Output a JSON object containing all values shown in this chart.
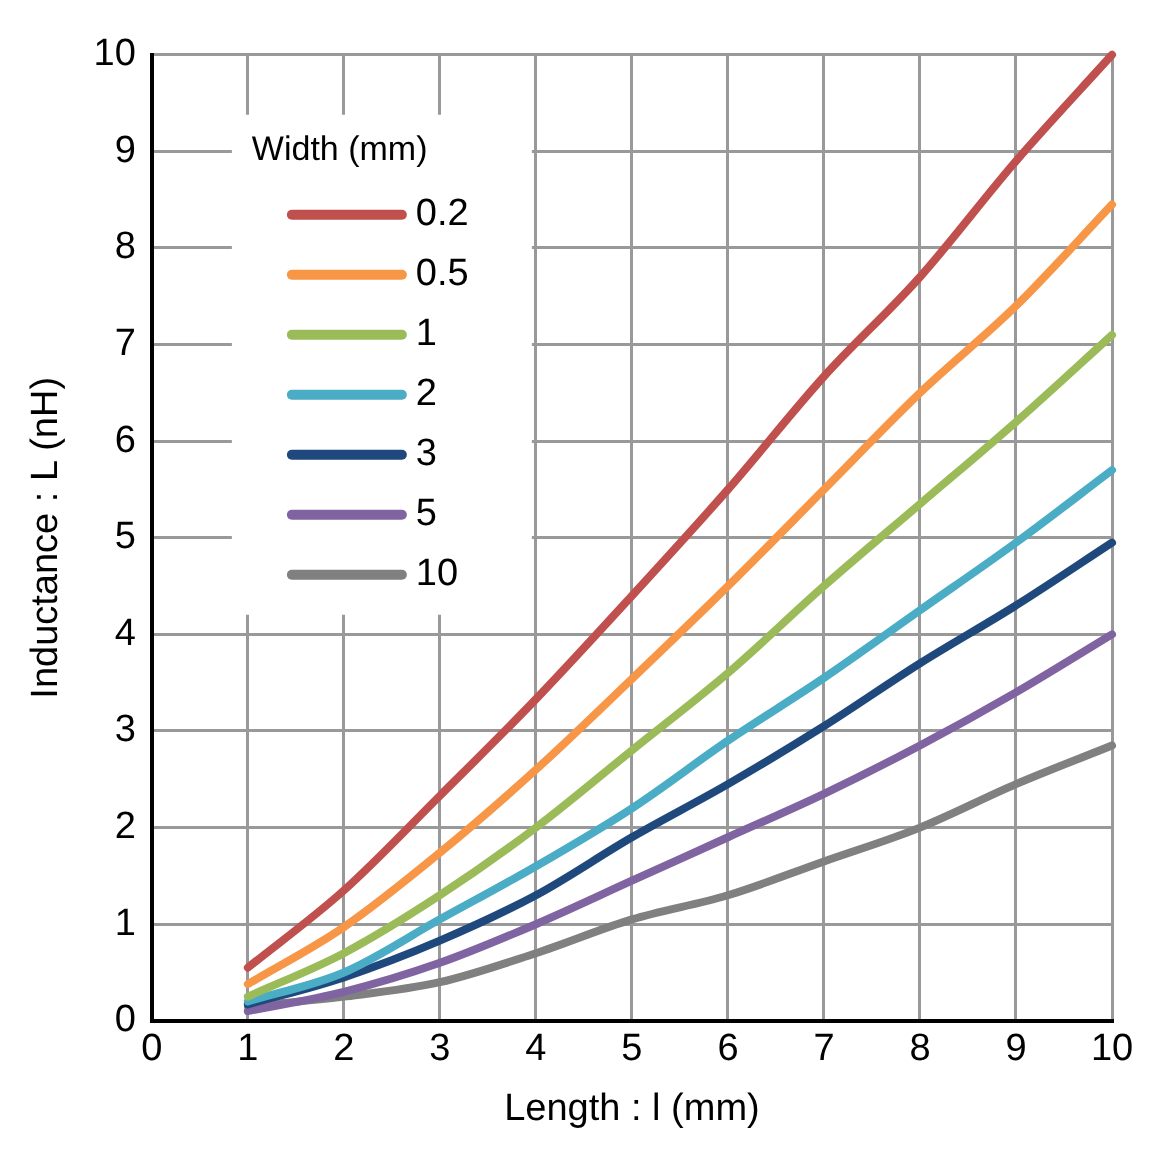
{
  "chart_data": {
    "type": "line",
    "xlabel": "Length : l (mm)",
    "ylabel": "Inductance : L (nH)",
    "legend_title": "Width (mm)",
    "x": [
      1,
      2,
      3,
      4,
      5,
      6,
      7,
      8,
      9,
      10
    ],
    "xlim": [
      0,
      10
    ],
    "xticks": [
      0,
      1,
      2,
      3,
      4,
      5,
      6,
      7,
      8,
      9,
      10
    ],
    "ylim": [
      0,
      10
    ],
    "yticks": [
      0,
      1,
      2,
      3,
      4,
      5,
      6,
      7,
      8,
      9,
      10
    ],
    "grid": true,
    "legend": "top left",
    "marker": "none",
    "line_style": "solid",
    "series": [
      {
        "name": "0.2",
        "color": "#c0504d",
        "values": [
          0.55,
          1.35,
          2.33,
          3.33,
          4.4,
          5.5,
          6.67,
          7.7,
          8.9,
          10
        ]
      },
      {
        "name": "0.5",
        "color": "#f79646",
        "values": [
          0.38,
          0.97,
          1.74,
          2.6,
          3.54,
          4.5,
          5.5,
          6.5,
          7.4,
          8.45
        ]
      },
      {
        "name": "1",
        "color": "#9bbb59",
        "values": [
          0.25,
          0.7,
          1.3,
          2.0,
          2.8,
          3.6,
          4.5,
          5.35,
          6.2,
          7.1
        ]
      },
      {
        "name": "2",
        "color": "#4bacc6",
        "values": [
          0.2,
          0.5,
          1.05,
          1.6,
          2.2,
          2.9,
          3.55,
          4.25,
          4.95,
          5.7
        ]
      },
      {
        "name": "3",
        "color": "#1f497d",
        "values": [
          0.17,
          0.45,
          0.83,
          1.3,
          1.9,
          2.45,
          3.05,
          3.7,
          4.3,
          4.95
        ]
      },
      {
        "name": "5",
        "color": "#8064a2",
        "values": [
          0.1,
          0.3,
          0.6,
          1.0,
          1.45,
          1.9,
          2.35,
          2.85,
          3.4,
          4.0
        ]
      },
      {
        "name": "10",
        "color": "#808080",
        "values": [
          0.15,
          0.25,
          0.4,
          0.7,
          1.05,
          1.3,
          1.65,
          2.0,
          2.45,
          2.85
        ]
      }
    ]
  }
}
